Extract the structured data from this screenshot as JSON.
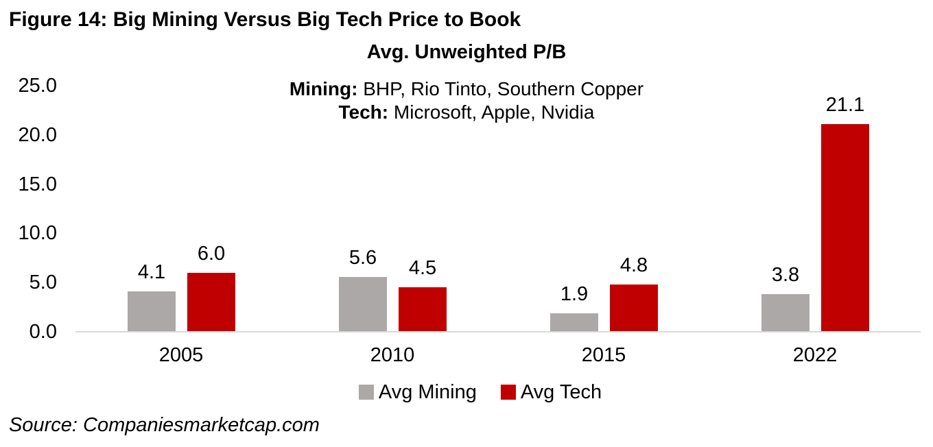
{
  "figure_title": "Figure 14: Big Mining Versus Big Tech Price to Book",
  "source": "Source: Companiesmarketcap.com",
  "chart_data": {
    "type": "bar",
    "title": "Avg. Unweighted P/B",
    "annotations": [
      {
        "bold": "Mining:",
        "rest": " BHP, Rio Tinto, Southern Copper"
      },
      {
        "bold": "Tech:",
        "rest": " Microsoft, Apple, Nvidia"
      }
    ],
    "categories": [
      "2005",
      "2010",
      "2015",
      "2022"
    ],
    "series": [
      {
        "name": "Avg Mining",
        "color": "#ACA8A8",
        "values": [
          4.1,
          5.6,
          1.9,
          3.8
        ]
      },
      {
        "name": "Avg Tech",
        "color": "#C00000",
        "values": [
          6.0,
          4.5,
          4.8,
          21.1
        ]
      }
    ],
    "y_ticks": [
      "25.0",
      "20.0",
      "15.0",
      "10.0",
      "5.0",
      "0.0"
    ],
    "ylim": [
      0,
      25
    ],
    "grid": false,
    "legend_position": "bottom",
    "axis_line_color": "#D9D9D9",
    "value_label_decimals": 1
  }
}
